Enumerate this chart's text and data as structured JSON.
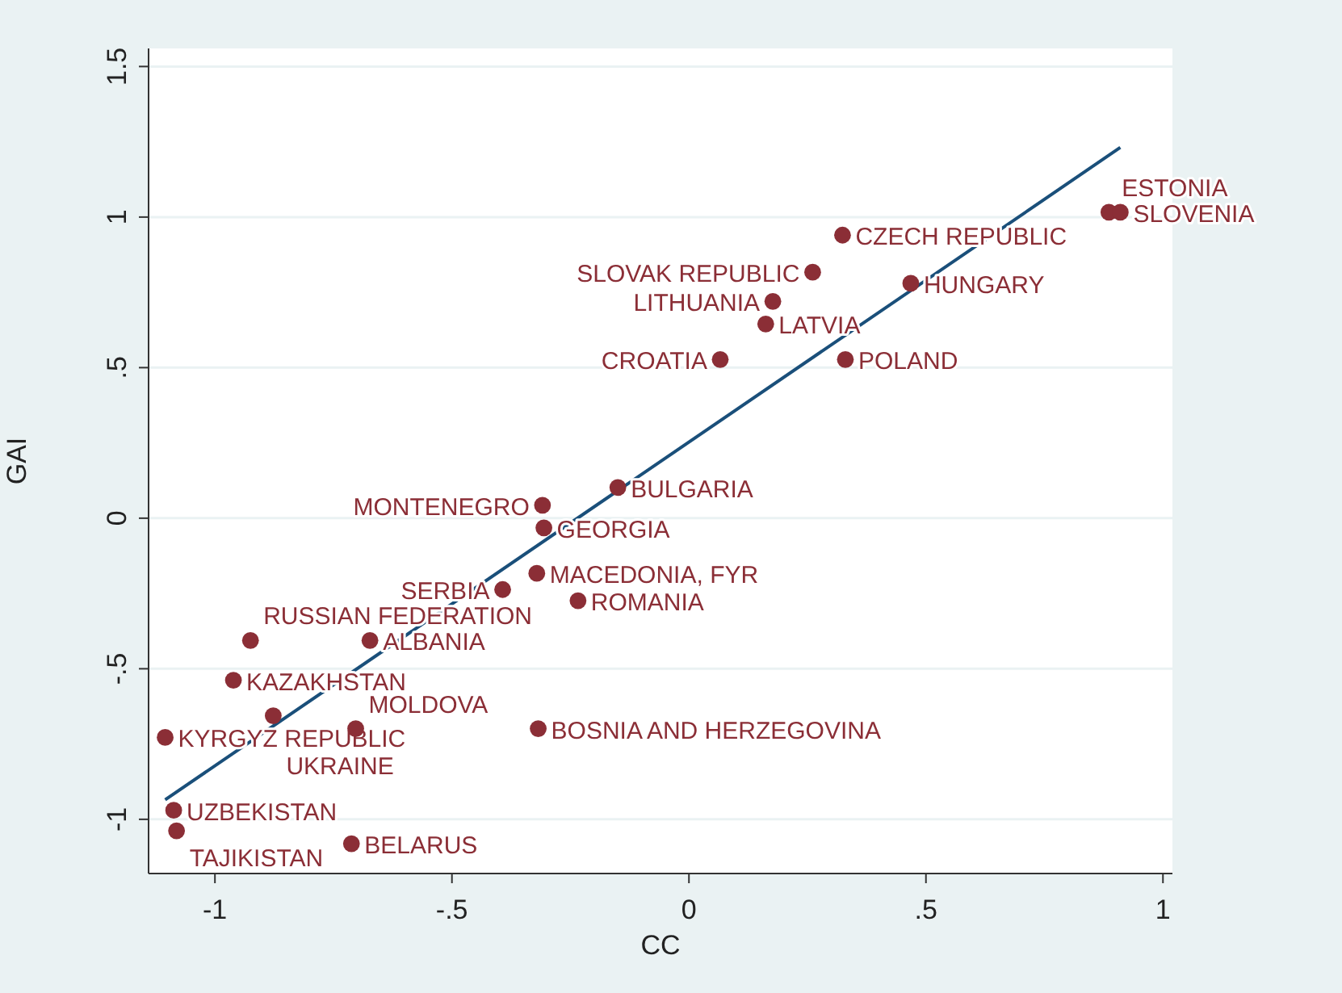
{
  "chart_data": {
    "type": "scatter",
    "xlabel": "CC",
    "ylabel": "GAI",
    "xlim": [
      -1.14,
      1.02
    ],
    "ylim": [
      -1.18,
      1.56
    ],
    "xticks": [
      {
        "value": -1,
        "label": "-1"
      },
      {
        "value": -0.5,
        "label": "-.5"
      },
      {
        "value": 0,
        "label": "0"
      },
      {
        "value": 0.5,
        "label": ".5"
      },
      {
        "value": 1,
        "label": "1"
      }
    ],
    "yticks": [
      {
        "value": -1,
        "label": "-1"
      },
      {
        "value": -0.5,
        "label": "-.5"
      },
      {
        "value": 0,
        "label": "0"
      },
      {
        "value": 0.5,
        "label": ".5"
      },
      {
        "value": 1,
        "label": "1"
      },
      {
        "value": 1.5,
        "label": "1.5"
      }
    ],
    "grid": "y",
    "marker": "circle",
    "series": [
      {
        "type": "scatter",
        "color": "#8b2e36",
        "x": [
          0.324,
          0.261,
          0.468,
          0.177,
          0.162,
          0.066,
          0.33,
          0.886,
          0.91,
          -0.15,
          -0.309,
          -0.306,
          -0.321,
          -0.393,
          -0.234,
          -0.925,
          -0.673,
          -0.961,
          -0.877,
          -0.703,
          -0.318,
          -1.105,
          -1.087,
          -1.081,
          -0.712
        ],
        "values": [
          0.94,
          0.817,
          0.78,
          0.72,
          0.645,
          0.527,
          0.527,
          1.016,
          1.016,
          0.102,
          0.043,
          -0.032,
          -0.183,
          -0.237,
          -0.274,
          -0.406,
          -0.406,
          -0.538,
          -0.656,
          -0.699,
          -0.699,
          -0.728,
          -0.97,
          -1.038,
          -1.081
        ]
      },
      {
        "type": "line",
        "color": "#1a4f7a",
        "marker": "none",
        "x": [
          -1.105,
          0.91
        ],
        "values": [
          -0.935,
          1.231
        ]
      }
    ],
    "annotations": [
      {
        "text": "CZECH REPUBLIC",
        "x": 0.324,
        "y": 0.94
      },
      {
        "text": "SLOVAK REPUBLIC",
        "x": 0.261,
        "y": 0.817
      },
      {
        "text": "HUNGARY",
        "x": 0.468,
        "y": 0.78
      },
      {
        "text": "LITHUANIA",
        "x": 0.177,
        "y": 0.72
      },
      {
        "text": "LATVIA",
        "x": 0.162,
        "y": 0.645
      },
      {
        "text": "CROATIA",
        "x": 0.066,
        "y": 0.527
      },
      {
        "text": "POLAND",
        "x": 0.33,
        "y": 0.527
      },
      {
        "text": "ESTONIA",
        "x": 0.886,
        "y": 1.016
      },
      {
        "text": "SLOVENIA",
        "x": 0.91,
        "y": 1.016
      },
      {
        "text": "BULGARIA",
        "x": -0.15,
        "y": 0.102
      },
      {
        "text": "MONTENEGRO",
        "x": -0.309,
        "y": 0.043
      },
      {
        "text": "GEORGIA",
        "x": -0.306,
        "y": -0.032
      },
      {
        "text": "MACEDONIA, FYR",
        "x": -0.321,
        "y": -0.183
      },
      {
        "text": "SERBIA",
        "x": -0.393,
        "y": -0.237
      },
      {
        "text": "ROMANIA",
        "x": -0.234,
        "y": -0.274
      },
      {
        "text": "RUSSIAN FEDERATION",
        "x": -0.925,
        "y": -0.406
      },
      {
        "text": "ALBANIA",
        "x": -0.673,
        "y": -0.406
      },
      {
        "text": "KAZAKHSTAN",
        "x": -0.961,
        "y": -0.538
      },
      {
        "text": "UKRAINE",
        "x": -0.877,
        "y": -0.656
      },
      {
        "text": "MOLDOVA",
        "x": -0.703,
        "y": -0.699
      },
      {
        "text": "BOSNIA AND HERZEGOVINA",
        "x": -0.318,
        "y": -0.699
      },
      {
        "text": "KYRGYZ REPUBLIC",
        "x": -1.105,
        "y": -0.728
      },
      {
        "text": "UZBEKISTAN",
        "x": -1.087,
        "y": -0.97
      },
      {
        "text": "TAJIKISTAN",
        "x": -1.081,
        "y": -1.038
      },
      {
        "text": "BELARUS",
        "x": -0.712,
        "y": -1.081
      }
    ]
  }
}
